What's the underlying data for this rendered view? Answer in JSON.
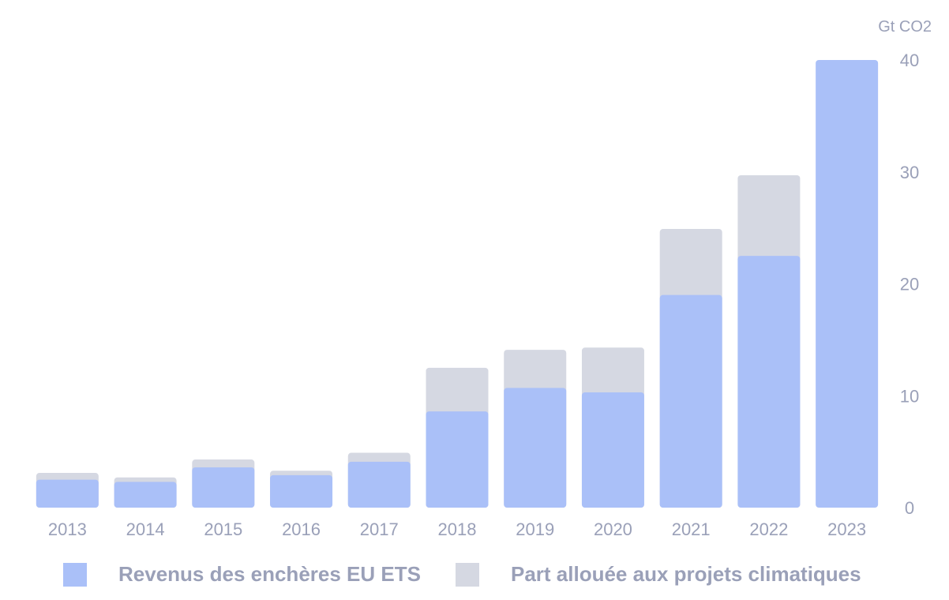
{
  "chart_data": {
    "type": "bar",
    "stacked": true,
    "categories": [
      "2013",
      "2014",
      "2015",
      "2016",
      "2017",
      "2018",
      "2019",
      "2020",
      "2021",
      "2022",
      "2023"
    ],
    "series": [
      {
        "name": "Revenus des enchères EU ETS",
        "color": "#aac0f8",
        "values": [
          2.5,
          2.3,
          3.6,
          2.9,
          4.1,
          8.6,
          10.7,
          10.3,
          19.0,
          22.5,
          40.0
        ]
      },
      {
        "name": "Part allouée aux projets climatiques",
        "color": "#d5d8e2",
        "values": [
          0.6,
          0.4,
          0.7,
          0.4,
          0.8,
          3.9,
          3.4,
          4.0,
          5.9,
          7.2,
          0
        ]
      }
    ],
    "yunit": "Gt CO2",
    "ylim": [
      0,
      40
    ],
    "yticks": [
      0,
      10,
      20,
      30,
      40
    ],
    "y_axis_position": "right",
    "grid": false,
    "legend_position": "bottom"
  }
}
